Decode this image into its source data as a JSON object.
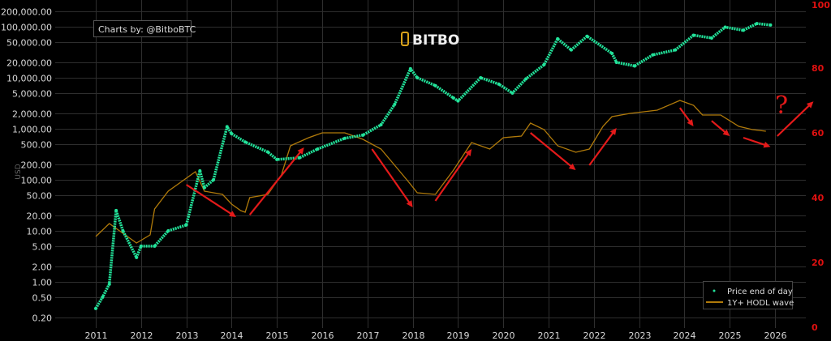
{
  "chart_data": {
    "type": "scatter",
    "title": "",
    "credit": "Charts by: @BitboBTC",
    "logo_text": "BITBO",
    "ylabel": "USD",
    "yscale": "log",
    "ylim": [
      0.15,
      250000
    ],
    "y2lim": [
      0,
      100
    ],
    "xlim": [
      2010.1,
      2026.8
    ],
    "x_ticks": [
      "2011",
      "2012",
      "2013",
      "2014",
      "2015",
      "2016",
      "2017",
      "2018",
      "2019",
      "2020",
      "2021",
      "2022",
      "2023",
      "2024",
      "2025",
      "2026"
    ],
    "y_ticks": [
      {
        "v": 200000,
        "label": "200,000.00"
      },
      {
        "v": 100000,
        "label": "100,000.00"
      },
      {
        "v": 50000,
        "label": "50,000.00"
      },
      {
        "v": 20000,
        "label": "20,000.00"
      },
      {
        "v": 10000,
        "label": "10,000.00"
      },
      {
        "v": 5000,
        "label": "5,000.00"
      },
      {
        "v": 2000,
        "label": "2,000.00"
      },
      {
        "v": 1000,
        "label": "1,000.00"
      },
      {
        "v": 500,
        "label": "500.00"
      },
      {
        "v": 200,
        "label": "200.00"
      },
      {
        "v": 100,
        "label": "100.00"
      },
      {
        "v": 50,
        "label": "50.00"
      },
      {
        "v": 20,
        "label": "20.00"
      },
      {
        "v": 10,
        "label": "10.00"
      },
      {
        "v": 5,
        "label": "5.00"
      },
      {
        "v": 2,
        "label": "2.00"
      },
      {
        "v": 1,
        "label": "1.00"
      },
      {
        "v": 0.5,
        "label": "0.50"
      },
      {
        "v": 0.2,
        "label": "0.20"
      }
    ],
    "y2_ticks": [
      "0",
      "20",
      "40",
      "60",
      "80",
      "100"
    ],
    "legend": {
      "placement": "bottom-right",
      "entries": [
        "Price end of day",
        "1Y+ HODL wave"
      ]
    },
    "colors": {
      "price": "#22e39a",
      "hodl": "#b07a0a",
      "annotation": "#e41a1a",
      "right_axis": "#e01010",
      "logo": "#d9a21b"
    },
    "series": [
      {
        "name": "Price end of day",
        "axis": "left",
        "x": [
          2011.0,
          2011.15,
          2011.3,
          2011.45,
          2011.6,
          2011.9,
          2012.0,
          2012.3,
          2012.6,
          2013.0,
          2013.3,
          2013.4,
          2013.6,
          2013.9,
          2014.0,
          2014.3,
          2014.8,
          2015.0,
          2015.5,
          2015.9,
          2016.5,
          2016.9,
          2017.3,
          2017.6,
          2017.95,
          2018.1,
          2018.5,
          2018.9,
          2019.0,
          2019.5,
          2019.9,
          2020.2,
          2020.5,
          2020.9,
          2021.2,
          2021.5,
          2021.85,
          2022.4,
          2022.5,
          2022.9,
          2023.3,
          2023.8,
          2024.2,
          2024.6,
          2024.9,
          2025.3,
          2025.6,
          2025.9
        ],
        "y": [
          0.3,
          0.5,
          0.9,
          25,
          10,
          3,
          5,
          5,
          10,
          13,
          150,
          70,
          100,
          1100,
          800,
          550,
          350,
          250,
          270,
          400,
          650,
          750,
          1200,
          3000,
          15000,
          10000,
          7000,
          4000,
          3500,
          10000,
          7500,
          5000,
          9500,
          18000,
          58000,
          35000,
          65000,
          30000,
          20000,
          17000,
          28000,
          35000,
          68000,
          60000,
          98000,
          85000,
          115000,
          108000
        ]
      },
      {
        "name": "1Y+ HODL wave",
        "axis": "right",
        "x": [
          2011.0,
          2011.3,
          2011.5,
          2011.9,
          2012.2,
          2012.3,
          2012.6,
          2013.0,
          2013.2,
          2013.4,
          2013.8,
          2014.0,
          2014.2,
          2014.3,
          2014.4,
          2014.8,
          2015.1,
          2015.3,
          2015.7,
          2016.0,
          2016.5,
          2016.9,
          2017.3,
          2017.6,
          2017.9,
          2018.1,
          2018.5,
          2018.9,
          2019.3,
          2019.7,
          2020.0,
          2020.4,
          2020.6,
          2020.9,
          2021.2,
          2021.6,
          2021.9,
          2022.2,
          2022.4,
          2022.8,
          2023.4,
          2023.9,
          2024.2,
          2024.4,
          2024.8,
          2025.2,
          2025.5,
          2025.8
        ],
        "y": [
          28,
          32,
          30,
          26,
          28.5,
          36.5,
          42,
          46,
          48,
          42,
          41,
          38,
          36,
          35.5,
          40,
          41,
          47,
          56,
          58.5,
          60,
          60,
          58,
          55,
          50,
          45,
          41.5,
          41,
          48.5,
          57,
          55,
          58.5,
          59,
          63,
          61,
          56,
          54,
          55,
          62,
          65,
          66,
          67,
          70,
          68.5,
          65.5,
          65.5,
          62,
          61,
          60.5
        ]
      }
    ],
    "annotations": {
      "arrows_year_pct": [
        [
          2013.0,
          44,
          2014.1,
          34
        ],
        [
          2014.4,
          34.7,
          2015.6,
          55.5
        ],
        [
          2017.1,
          55,
          2018.0,
          37
        ],
        [
          2018.5,
          39,
          2019.3,
          55
        ],
        [
          2020.6,
          60,
          2021.6,
          48.5
        ],
        [
          2021.9,
          50,
          2022.5,
          61.5
        ],
        [
          2023.9,
          67.7,
          2024.2,
          62
        ],
        [
          2024.6,
          63.7,
          2025.0,
          59
        ],
        [
          2025.3,
          58.5,
          2025.9,
          55.7
        ],
        [
          2026.05,
          59,
          2026.85,
          69.7
        ]
      ],
      "question_mark": "?"
    }
  }
}
